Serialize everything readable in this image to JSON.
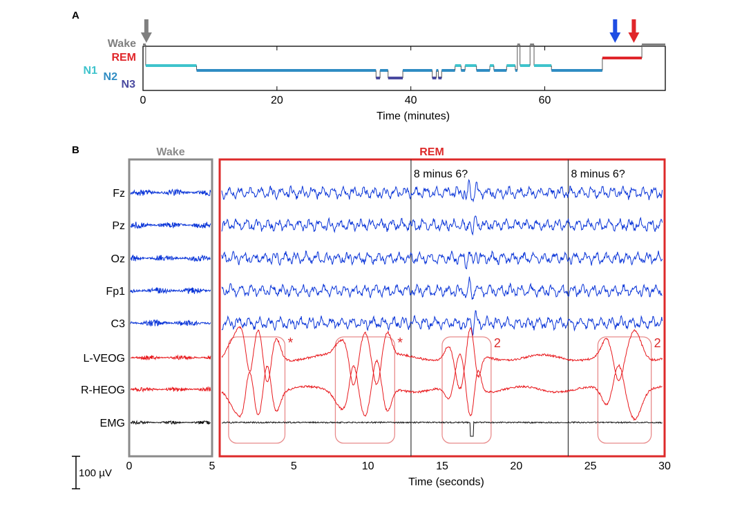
{
  "chart_data": [
    {
      "panel": "A",
      "type": "line",
      "title": "",
      "xlabel": "Time (minutes)",
      "ylabel": "",
      "xlim": [
        0,
        78
      ],
      "xticks": [
        0,
        20,
        40,
        60
      ],
      "stage_labels": [
        "Wake",
        "REM",
        "N1",
        "N2",
        "N3"
      ],
      "stage_colors": {
        "Wake": "#7f7f7f",
        "REM": "#e0262a",
        "N1": "#3ec3cc",
        "N2": "#2f8cc3",
        "N3": "#4a4aa0"
      },
      "arrows": [
        {
          "color": "#7f7f7f",
          "x": 0.5
        },
        {
          "color": "#1f4de3",
          "x": 70.5
        },
        {
          "color": "#e0262a",
          "x": 73.3
        }
      ],
      "hypnogram": [
        [
          0,
          "Wake"
        ],
        [
          0.4,
          "N1"
        ],
        [
          8,
          "N2"
        ],
        [
          34.8,
          "N3"
        ],
        [
          35.4,
          "N2"
        ],
        [
          36.6,
          "N3"
        ],
        [
          38.8,
          "N2"
        ],
        [
          43.2,
          "N3"
        ],
        [
          43.8,
          "N2"
        ],
        [
          44.1,
          "N3"
        ],
        [
          44.6,
          "N2"
        ],
        [
          46.6,
          "N1"
        ],
        [
          47.5,
          "N2"
        ],
        [
          48.1,
          "N1"
        ],
        [
          49.8,
          "N2"
        ],
        [
          51.8,
          "N1"
        ],
        [
          52.4,
          "N2"
        ],
        [
          54.3,
          "N1"
        ],
        [
          55.6,
          "N2"
        ],
        [
          55.9,
          "Wake"
        ],
        [
          56.3,
          "N1"
        ],
        [
          57.8,
          "Wake"
        ],
        [
          58.4,
          "N1"
        ],
        [
          61,
          "N2"
        ],
        [
          68.6,
          "REM"
        ],
        [
          74.5,
          "Wake"
        ],
        [
          78,
          "Wake"
        ]
      ]
    },
    {
      "panel": "B",
      "type": "line",
      "title": "",
      "xlabel": "Time (seconds)",
      "ylabel": "",
      "wake_label": "Wake",
      "rem_label": "REM",
      "wake_xlim": [
        0,
        5
      ],
      "wake_xticks": [
        0,
        5
      ],
      "rem_xlim": [
        0,
        30
      ],
      "rem_xticks": [
        5,
        10,
        15,
        20,
        25,
        30
      ],
      "channels": [
        {
          "name": "Fz",
          "color": "#0a35d8"
        },
        {
          "name": "Pz",
          "color": "#0a35d8"
        },
        {
          "name": "Oz",
          "color": "#0a35d8"
        },
        {
          "name": "Fp1",
          "color": "#0a35d8"
        },
        {
          "name": "C3",
          "color": "#0a35d8"
        },
        {
          "name": "L-VEOG",
          "color": "#e8181c"
        },
        {
          "name": "R-HEOG",
          "color": "#e8181c"
        },
        {
          "name": "EMG",
          "color": "#111111"
        }
      ],
      "event_lines": [
        {
          "time": 12.9,
          "label": "8 minus 6?"
        },
        {
          "time": 23.5,
          "label": "8 minus 6?"
        }
      ],
      "eye_movement_boxes": [
        {
          "start": 0.6,
          "end": 4.4,
          "label": "*"
        },
        {
          "start": 7.8,
          "end": 11.8,
          "label": "*"
        },
        {
          "start": 15.0,
          "end": 18.3,
          "label": "2"
        },
        {
          "start": 25.5,
          "end": 29.1,
          "label": "2"
        }
      ],
      "scale_bar": "100 µV"
    }
  ]
}
